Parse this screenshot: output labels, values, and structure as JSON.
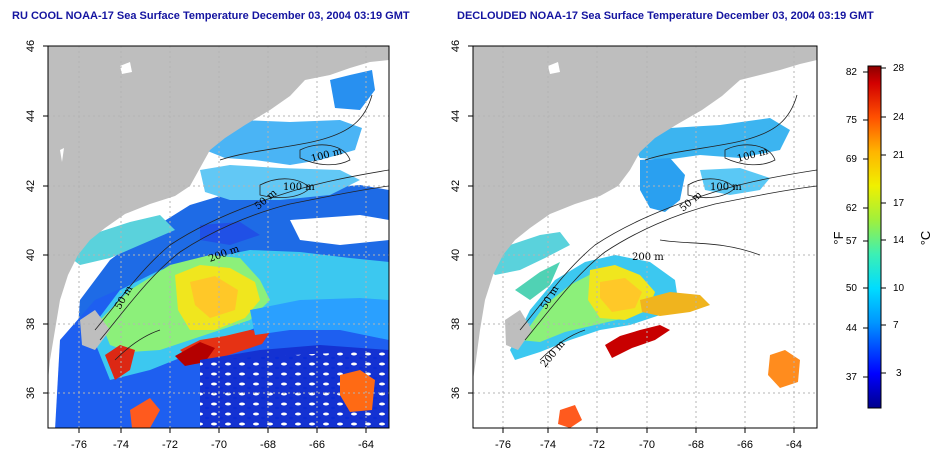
{
  "panels": [
    {
      "title": "RU COOL NOAA-17 Sea Surface Temperature December 03, 2004 03:19 GMT",
      "x_ticks": [
        "-76",
        "-74",
        "-72",
        "-70",
        "-68",
        "-66",
        "-64"
      ],
      "y_ticks": [
        "46",
        "44",
        "42",
        "40",
        "38",
        "36"
      ],
      "contour_labels": [
        "100 m",
        "100 m",
        "50 m",
        "200 m",
        "50 m"
      ]
    },
    {
      "title": "DECLOUDED NOAA-17 Sea Surface Temperature December 03, 2004 03:19 GMT",
      "x_ticks": [
        "-76",
        "-74",
        "-72",
        "-70",
        "-68",
        "-66",
        "-64"
      ],
      "y_ticks": [
        "46",
        "44",
        "42",
        "40",
        "38",
        "36"
      ],
      "contour_labels": [
        "100 m",
        "100 m",
        "50 m",
        "200 m",
        "50 m",
        "200 m"
      ]
    }
  ],
  "colorbar": {
    "fahrenheit_ticks": [
      "82",
      "75",
      "69",
      "62",
      "57",
      "50",
      "44",
      "37"
    ],
    "celsius_ticks": [
      "28",
      "24",
      "21",
      "17",
      "14",
      "10",
      "7",
      "3"
    ],
    "fahrenheit_unit": "°F",
    "celsius_unit": "°C"
  },
  "colors": {
    "land": "#bebebe",
    "title": "#1414a0",
    "grid": "#b4b4b4"
  }
}
